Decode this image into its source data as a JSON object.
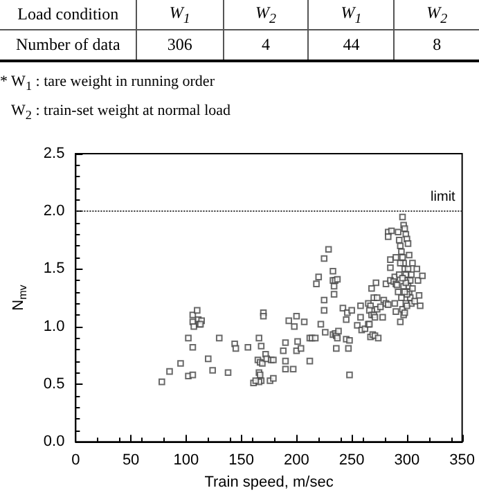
{
  "chart_data": {
    "type": "scatter",
    "xlabel": "Train speed, m/sec",
    "ylabel": "N$_{mv}$",
    "annotations": [
      "Load condition",
      "W$_{1}$",
      "W$_{2}$",
      "W$_{1}$",
      "W$_{2}$",
      "Number of data",
      "306",
      "4",
      "44",
      "8",
      "* W$_{1}$ : tare weight in running order",
      "W$_{2}$ : train-set weight at normal load"
    ],
    "xlim": [
      0,
      350
    ],
    "xticks": [
      0,
      50,
      100,
      150,
      200,
      250,
      300,
      350
    ],
    "ylim": [
      0,
      2.5
    ],
    "yticks": [
      {
        "value": 0,
        "label": "0.0"
      },
      0.5,
      {
        "value": 1,
        "label": "1.0"
      },
      1.5,
      {
        "value": 2,
        "label": "2.0"
      },
      2.5
    ],
    "marker": "square",
    "grid": false,
    "ref_lines": [
      {
        "axis": "y",
        "value": 2.0,
        "label": "limit",
        "line_style": "dotted",
        "color": "#333333"
      }
    ],
    "series": [
      {
        "color": "#444444",
        "x": [
          78,
          85,
          95,
          102,
          106,
          102,
          106,
          106,
          106,
          107,
          110,
          111,
          112,
          114,
          113,
          120,
          124,
          130,
          138,
          144,
          145,
          156,
          166,
          170,
          170,
          168,
          165,
          167,
          169,
          172,
          173,
          177,
          179,
          166,
          167,
          168,
          166,
          161,
          163,
          176,
          179,
          188,
          190,
          190,
          190,
          197,
          193,
          198,
          200,
          201,
          200,
          204,
          207,
          212,
          214,
          217,
          212,
          218,
          220,
          222,
          225,
          229,
          225,
          225,
          226,
          233,
          233,
          235,
          237,
          234,
          234,
          233,
          235,
          236,
          237,
          238,
          236,
          242,
          246,
          245,
          250,
          245,
          248,
          247,
          248,
          255,
          258,
          258,
          259,
          262,
          265,
          266,
          265,
          267,
          266,
          268,
          270,
          272,
          268,
          270,
          273,
          267,
          269,
          271,
          274,
          271,
          273,
          276,
          278,
          279,
          281,
          283,
          283,
          286,
          283,
          285,
          285,
          290,
          289,
          281,
          285,
          288,
          290,
          291,
          294,
          289,
          290,
          292,
          293,
          294,
          295,
          296,
          297,
          298,
          299,
          300,
          301,
          302,
          303,
          304,
          292,
          293,
          294,
          295,
          296,
          297,
          298,
          299,
          300,
          301,
          302,
          303,
          305,
          296,
          297,
          298,
          299,
          300,
          301,
          297,
          298,
          299,
          300,
          296,
          305,
          309,
          310,
          311,
          312,
          314,
          307,
          304
        ],
        "values": [
          0.52,
          0.61,
          0.68,
          0.57,
          0.58,
          0.9,
          0.82,
          1.1,
          1.04,
          1.0,
          1.14,
          1.06,
          1.02,
          1.05,
          1.02,
          0.72,
          0.62,
          0.9,
          0.6,
          0.85,
          0.81,
          0.82,
          0.9,
          1.12,
          1.09,
          0.83,
          0.71,
          0.69,
          0.68,
          0.76,
          0.72,
          0.71,
          0.71,
          0.6,
          0.58,
          0.53,
          0.52,
          0.51,
          0.53,
          0.53,
          0.55,
          0.79,
          0.86,
          0.7,
          0.63,
          0.63,
          1.05,
          1.0,
          1.09,
          0.87,
          0.79,
          0.81,
          1.04,
          0.9,
          0.9,
          0.9,
          0.7,
          1.37,
          1.43,
          1.02,
          1.59,
          1.67,
          1.23,
          1.14,
          0.95,
          1.48,
          1.4,
          1.4,
          1.41,
          1.35,
          1.28,
          0.93,
          0.94,
          0.92,
          0.9,
          0.96,
          0.81,
          1.16,
          1.12,
          1.06,
          1.14,
          0.89,
          0.88,
          0.81,
          0.58,
          1.01,
          1.08,
          1.18,
          0.97,
          0.98,
          1.02,
          1.02,
          1.2,
          1.18,
          1.14,
          1.1,
          1.1,
          1.38,
          1.33,
          1.25,
          1.25,
          0.91,
          0.93,
          0.92,
          0.9,
          1.08,
          1.15,
          1.17,
          1.08,
          1.23,
          1.2,
          1.19,
          1.82,
          1.83,
          1.78,
          1.51,
          1.58,
          1.6,
          1.43,
          1.37,
          1.4,
          1.39,
          1.37,
          1.36,
          1.04,
          1.2,
          1.13,
          1.82,
          1.75,
          1.7,
          1.65,
          1.6,
          1.55,
          1.5,
          1.45,
          1.4,
          1.35,
          1.3,
          1.25,
          1.2,
          1.3,
          1.45,
          1.55,
          1.25,
          1.15,
          1.1,
          1.12,
          1.2,
          1.28,
          1.5,
          1.62,
          1.4,
          1.33,
          1.95,
          1.88,
          1.85,
          1.8,
          1.76,
          1.72,
          1.35,
          1.3,
          1.38,
          1.18,
          1.42,
          1.55,
          1.5,
          1.4,
          1.27,
          1.18,
          1.44,
          1.22,
          1.45
        ]
      }
    ]
  }
}
